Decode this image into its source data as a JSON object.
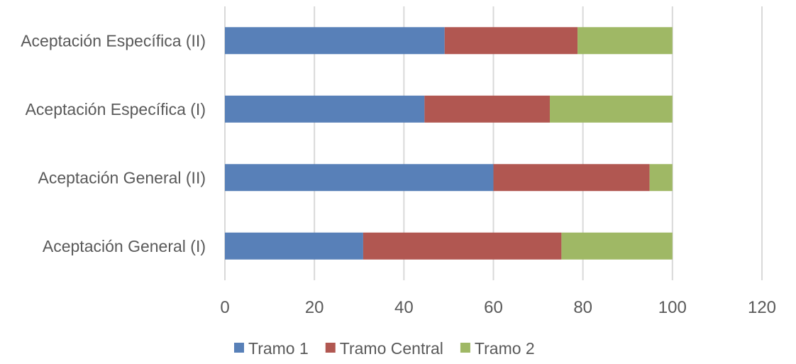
{
  "chart_data": {
    "type": "bar",
    "orientation": "horizontal",
    "stacked": true,
    "title": "",
    "xlabel": "",
    "ylabel": "",
    "categories": [
      "Aceptación Específica (II)",
      "Aceptación Específica (I)",
      "Aceptación General (II)",
      "Aceptación General (I)"
    ],
    "series": [
      {
        "name": "Tramo 1",
        "color": "#5880B8",
        "values": [
          49.1,
          44.6,
          60.0,
          30.9
        ]
      },
      {
        "name": "Tramo Central",
        "color": "#B15751",
        "values": [
          29.7,
          28.0,
          34.9,
          44.3
        ]
      },
      {
        "name": "Tramo 2",
        "color": "#9FB865",
        "values": [
          21.2,
          27.4,
          5.1,
          24.8
        ]
      }
    ],
    "xlim": [
      0,
      120
    ],
    "xticks": [
      0,
      20,
      40,
      60,
      80,
      100,
      120
    ],
    "grid": true,
    "legend": "bottom"
  }
}
